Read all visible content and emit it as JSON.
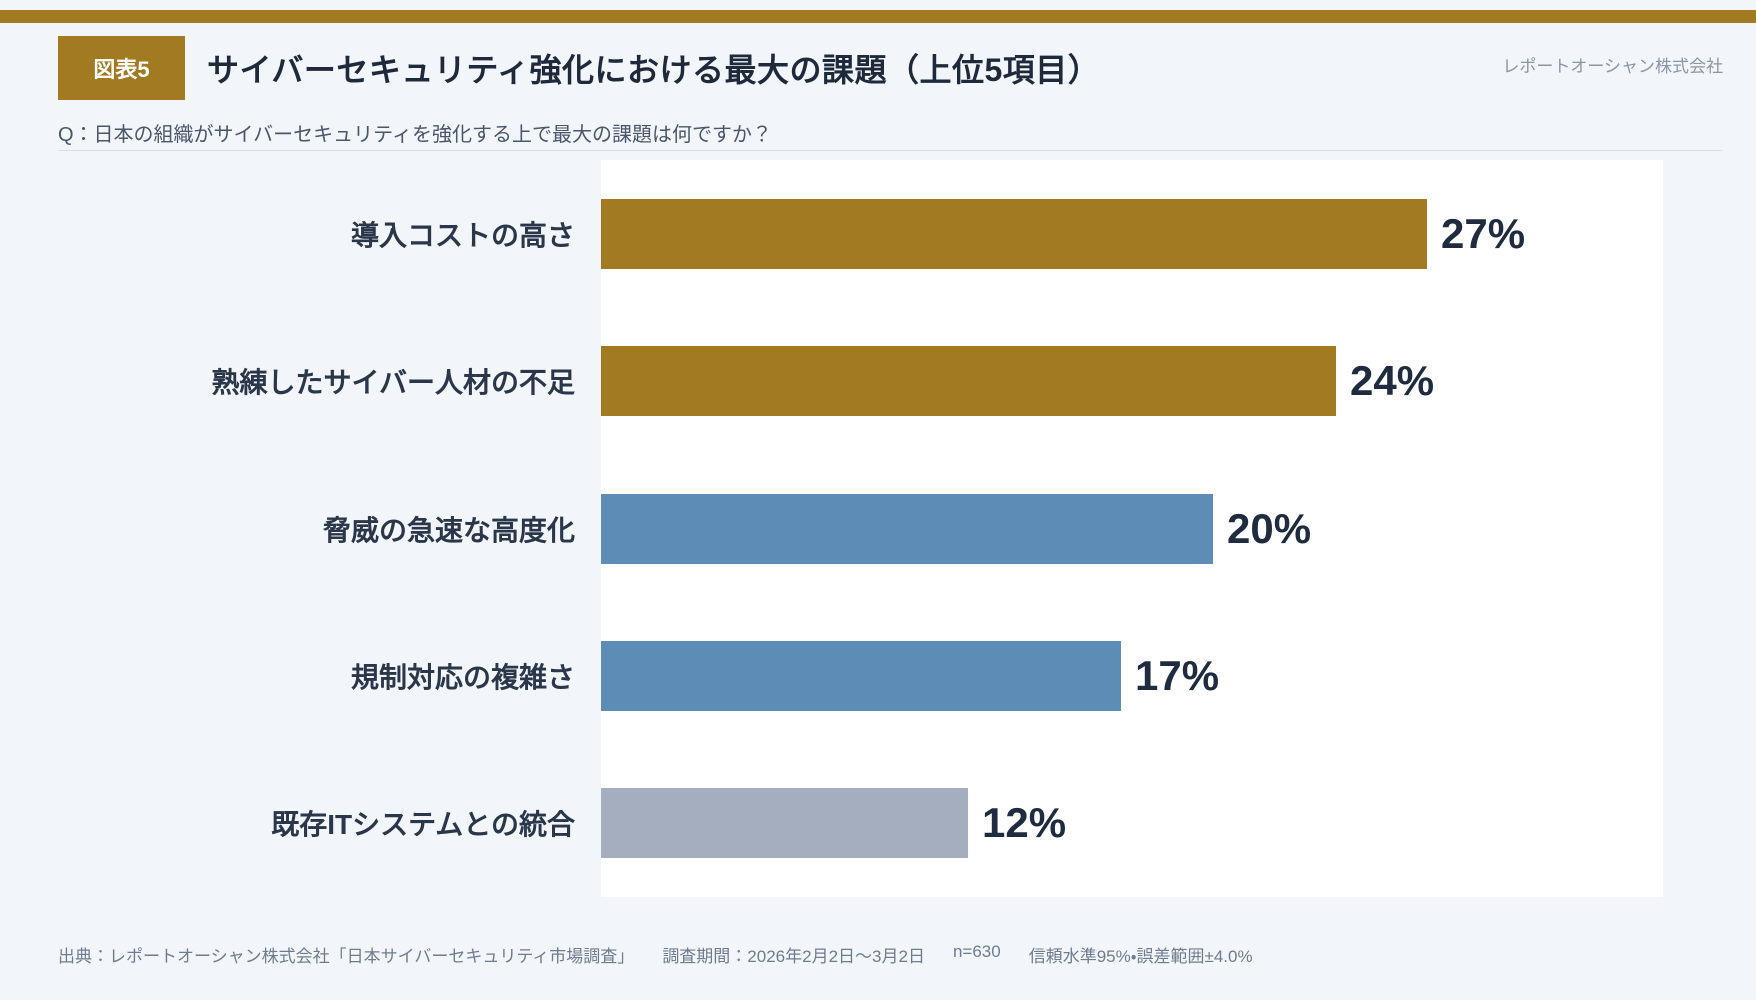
{
  "page": {
    "background": "#F2F5F9",
    "accent_gold": "#A17A21",
    "panel_background": "#FFFFFF"
  },
  "header": {
    "badge_label": "図表5",
    "title": "サイバーセキュリティ強化における最大の課題（上位5項目）",
    "company": "レポートオーシャン株式会社",
    "question": "Q：日本の組織がサイバーセキュリティを強化する上で最大の課題は何ですか？"
  },
  "chart_data": {
    "type": "bar",
    "orientation": "horizontal",
    "title": "サイバーセキュリティ強化における最大の課題（上位5項目）",
    "categories": [
      "導入コストの高さ",
      "熟練したサイバー人材の不足",
      "脅威の急速な高度化",
      "規制対応の複雑さ",
      "既存ITシステムとの統合"
    ],
    "values": [
      27,
      24,
      20,
      17,
      12
    ],
    "value_labels": [
      "27%",
      "24%",
      "20%",
      "17%",
      "12%"
    ],
    "bar_colors": [
      "#A17A21",
      "#A17A21",
      "#5D8CB7",
      "#5D8CB7",
      "#A5AEBE"
    ],
    "xlabel": "",
    "ylabel": "",
    "xlim": [
      0,
      34.7
    ],
    "grid": false,
    "legend": false,
    "value_label_position": "outside-end"
  },
  "footer": {
    "segments": [
      "出典：レポートオーシャン株式会社「日本サイバーセキュリティ市場調査」",
      "調査期間：2026年2月2日〜3月2日",
      "n=630",
      "信頼水準95%・誤差範囲±4.0%"
    ]
  }
}
